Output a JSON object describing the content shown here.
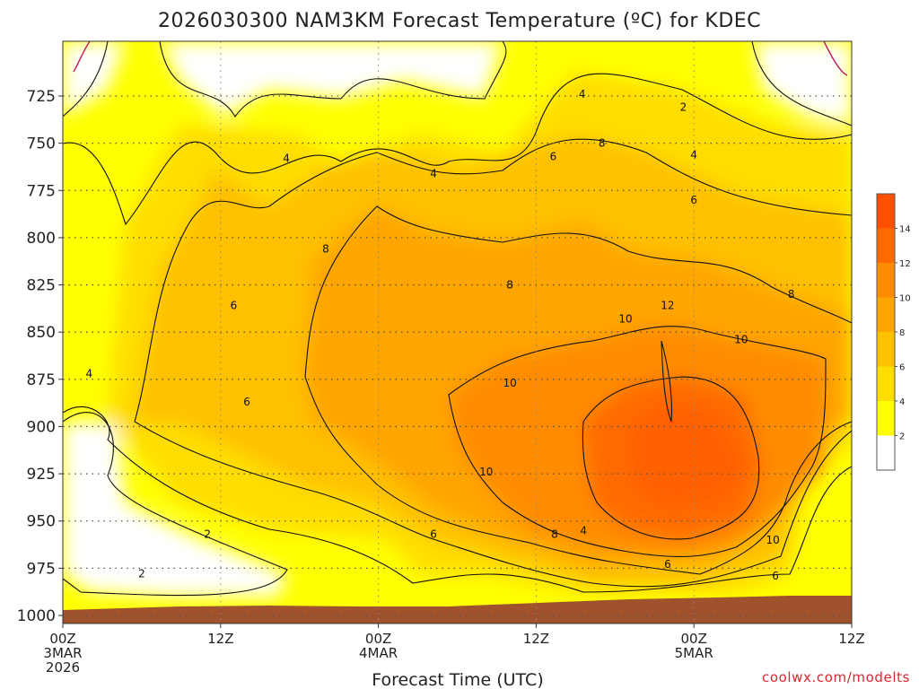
{
  "chart_data": {
    "type": "heatmap",
    "title": "2026030300 NAM3KM Forecast Temperature (ºC) for KDEC",
    "xlabel": "Forecast Time (UTC)",
    "ylabel": "",
    "credit": "coolwx.com/modelts",
    "y_ticks": [
      "725",
      "750",
      "775",
      "800",
      "825",
      "850",
      "875",
      "900",
      "925",
      "950",
      "975",
      "1000"
    ],
    "y_values": [
      725,
      750,
      775,
      800,
      825,
      850,
      875,
      900,
      925,
      950,
      975,
      1000
    ],
    "ylim": [
      700,
      1003
    ],
    "x_ticks": [
      {
        "line1": "00Z",
        "line2": "3MAR",
        "line3": "2026",
        "hour": 0
      },
      {
        "line1": "12Z",
        "line2": "",
        "line3": "",
        "hour": 12
      },
      {
        "line1": "00Z",
        "line2": "4MAR",
        "line3": "",
        "hour": 24
      },
      {
        "line1": "12Z",
        "line2": "",
        "line3": "",
        "hour": 36
      },
      {
        "line1": "00Z",
        "line2": "5MAR",
        "line3": "",
        "hour": 48
      },
      {
        "line1": "12Z",
        "line2": "",
        "line3": "",
        "hour": 60
      }
    ],
    "xlim": [
      0,
      60
    ],
    "colorbar": {
      "levels": [
        0,
        2,
        4,
        6,
        8,
        10,
        12,
        14,
        16
      ],
      "labels": [
        "2",
        "4",
        "6",
        "8",
        "10",
        "12",
        "14"
      ],
      "colors": [
        "#ffffff",
        "#ffff00",
        "#ffdd00",
        "#ffc000",
        "#ffa500",
        "#ff8c00",
        "#ff6a00",
        "#ff5000"
      ]
    },
    "ground_color": "#a0522d",
    "zero_line_color": "#c2185b",
    "contour_labels": [
      {
        "text": "2",
        "hour": 47.2,
        "p": 731
      },
      {
        "text": "4",
        "hour": 39.5,
        "p": 724
      },
      {
        "text": "4",
        "hour": 17,
        "p": 758
      },
      {
        "text": "4",
        "hour": 28.2,
        "p": 766
      },
      {
        "text": "4",
        "hour": 48,
        "p": 756
      },
      {
        "text": "6",
        "hour": 37.3,
        "p": 757
      },
      {
        "text": "8",
        "hour": 41,
        "p": 750
      },
      {
        "text": "6",
        "hour": 48,
        "p": 780
      },
      {
        "text": "8",
        "hour": 20,
        "p": 806
      },
      {
        "text": "8",
        "hour": 34,
        "p": 825
      },
      {
        "text": "8",
        "hour": 55.4,
        "p": 830
      },
      {
        "text": "6",
        "hour": 13,
        "p": 836
      },
      {
        "text": "10",
        "hour": 42.8,
        "p": 843
      },
      {
        "text": "12",
        "hour": 46,
        "p": 836
      },
      {
        "text": "10",
        "hour": 51.6,
        "p": 854
      },
      {
        "text": "10",
        "hour": 34,
        "p": 877
      },
      {
        "text": "4",
        "hour": 2,
        "p": 872
      },
      {
        "text": "6",
        "hour": 14,
        "p": 887
      },
      {
        "text": "10",
        "hour": 32.2,
        "p": 924
      },
      {
        "text": "6",
        "hour": 28.2,
        "p": 957
      },
      {
        "text": "8",
        "hour": 37.4,
        "p": 957
      },
      {
        "text": "4",
        "hour": 39.6,
        "p": 955
      },
      {
        "text": "10",
        "hour": 54,
        "p": 960
      },
      {
        "text": "2",
        "hour": 11,
        "p": 957
      },
      {
        "text": "2",
        "hour": 6,
        "p": 978
      },
      {
        "text": "6",
        "hour": 46,
        "p": 973
      },
      {
        "text": "6",
        "hour": 54.2,
        "p": 979
      }
    ]
  }
}
